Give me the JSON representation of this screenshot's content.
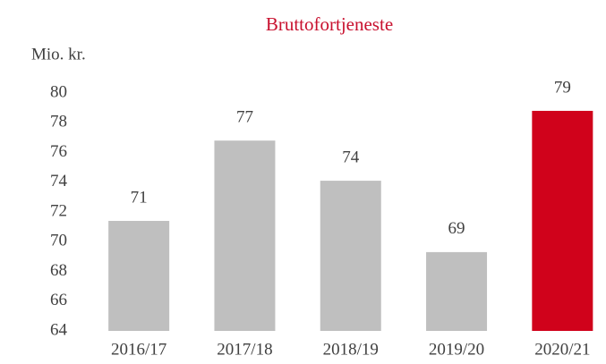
{
  "chart_data": {
    "type": "bar",
    "title": "Bruttofortjeneste",
    "y_label": "Mio. kr.",
    "categories": [
      "2016/17",
      "2017/18",
      "2018/19",
      "2019/20",
      "2020/21"
    ],
    "values": [
      71.4,
      76.8,
      74.1,
      69.3,
      78.8
    ],
    "value_labels": [
      "71",
      "77",
      "74",
      "69",
      "79"
    ],
    "colors": [
      "#bfbfbf",
      "#bfbfbf",
      "#bfbfbf",
      "#bfbfbf",
      "#d0021b"
    ],
    "ylim": [
      64,
      80
    ],
    "yticks": [
      64,
      66,
      68,
      70,
      72,
      74,
      76,
      78,
      80
    ],
    "grid": false
  }
}
